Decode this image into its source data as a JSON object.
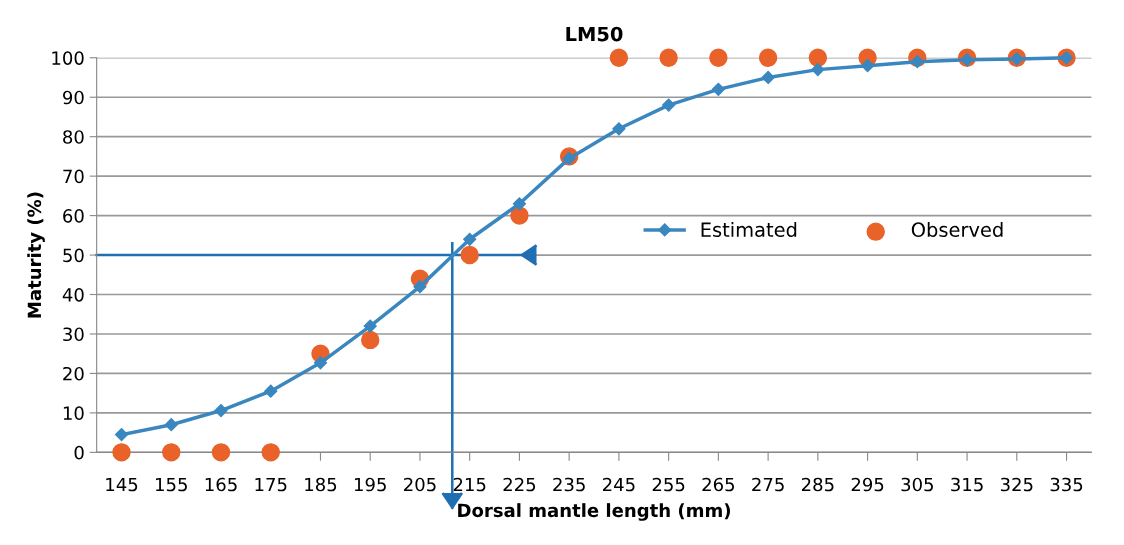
{
  "chart_data": {
    "type": "line",
    "title": "LM50",
    "xlabel": "Dorsal mantle length (mm)",
    "ylabel": "Maturity (%)",
    "x": [
      145,
      155,
      165,
      175,
      185,
      195,
      205,
      215,
      225,
      235,
      245,
      255,
      265,
      275,
      285,
      295,
      305,
      315,
      325,
      335
    ],
    "series": [
      {
        "name": "Estimated",
        "type": "line",
        "color": "#3a87c0",
        "marker": "diamond",
        "line_style": "solid",
        "values": [
          4.5,
          7,
          10.6,
          15.5,
          22.7,
          32,
          42,
          54,
          63,
          74.5,
          82,
          88,
          92,
          95,
          97,
          98,
          99,
          99.5,
          99.7,
          100
        ]
      },
      {
        "name": "Observed",
        "type": "scatter",
        "color": "#e8622a",
        "marker": "circle",
        "values": [
          0,
          0,
          0,
          0,
          25,
          28.5,
          44,
          50,
          60,
          75,
          100,
          100,
          100,
          100,
          100,
          100,
          100,
          100,
          100,
          100
        ]
      }
    ],
    "xlim": [
      140,
      340
    ],
    "xticks": [
      145,
      155,
      165,
      175,
      185,
      195,
      205,
      215,
      225,
      235,
      245,
      255,
      265,
      275,
      285,
      295,
      305,
      315,
      325,
      335
    ],
    "ylim": [
      0,
      100
    ],
    "yticks": [
      0,
      10,
      20,
      30,
      40,
      50,
      60,
      70,
      80,
      90,
      100
    ],
    "ref_lines": [
      {
        "axis": "y",
        "value": 50,
        "color": "#1f6fb2"
      },
      {
        "axis": "x",
        "value": 211.5,
        "color": "#1f6fb2"
      }
    ],
    "grid": "y",
    "legend": "right"
  }
}
